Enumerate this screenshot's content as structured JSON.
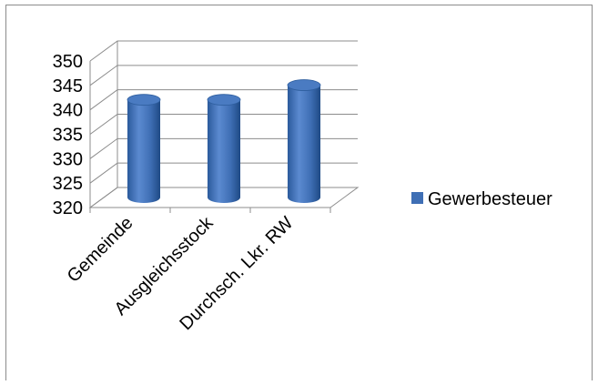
{
  "chart_data": {
    "type": "bar",
    "style": "3d-cylinder",
    "categories": [
      "Gemeinde",
      "Ausgleichsstock",
      "Durchsch. Lkr. RW"
    ],
    "series": [
      {
        "name": "Gewerbesteuer",
        "values": [
          340,
          340,
          343
        ],
        "color": "#3f6fb5"
      }
    ],
    "y_ticks": [
      "320",
      "325",
      "330",
      "335",
      "340",
      "345",
      "350"
    ],
    "ylim": [
      320,
      350
    ],
    "grid": true,
    "legend_position": "right"
  }
}
